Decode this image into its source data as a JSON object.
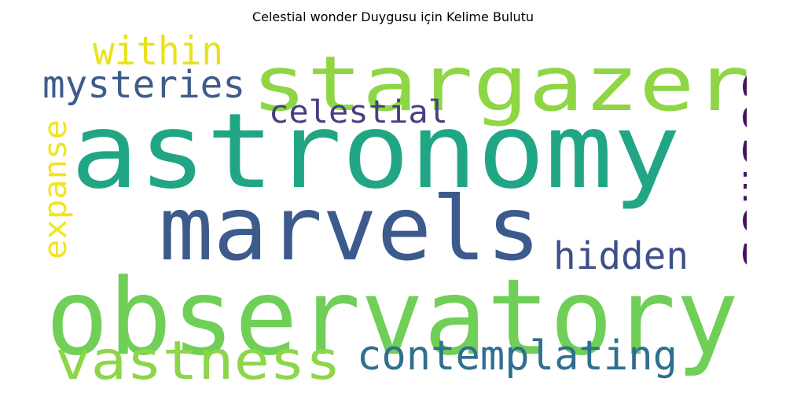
{
  "title": "Celestial wonder Duygusu için Kelime Bulutu",
  "words": [
    {
      "id": "word-astronomy",
      "text": "astronomy",
      "color": "#21a685"
    },
    {
      "id": "word-observatory",
      "text": "observatory",
      "color": "#6fcf57"
    },
    {
      "id": "word-stargazer",
      "text": "stargazer",
      "color": "#8ed645"
    },
    {
      "id": "word-marvels",
      "text": "marvels",
      "color": "#3d5a8c"
    },
    {
      "id": "word-cosmos",
      "text": "cosmos",
      "color": "#46125f"
    },
    {
      "id": "word-vastness",
      "text": "vastness",
      "color": "#8dd64a"
    },
    {
      "id": "word-contemplating",
      "text": "contemplating",
      "color": "#2f6f8f"
    },
    {
      "id": "word-mysteries",
      "text": "mysteries",
      "color": "#3f5d8a"
    },
    {
      "id": "word-within",
      "text": "within",
      "color": "#e8e21c"
    },
    {
      "id": "word-celestial",
      "text": "celestial",
      "color": "#463f83"
    },
    {
      "id": "word-hidden",
      "text": "hidden",
      "color": "#3e4f89"
    },
    {
      "id": "word-expanse",
      "text": "expanse",
      "color": "#f2e51d"
    }
  ]
}
